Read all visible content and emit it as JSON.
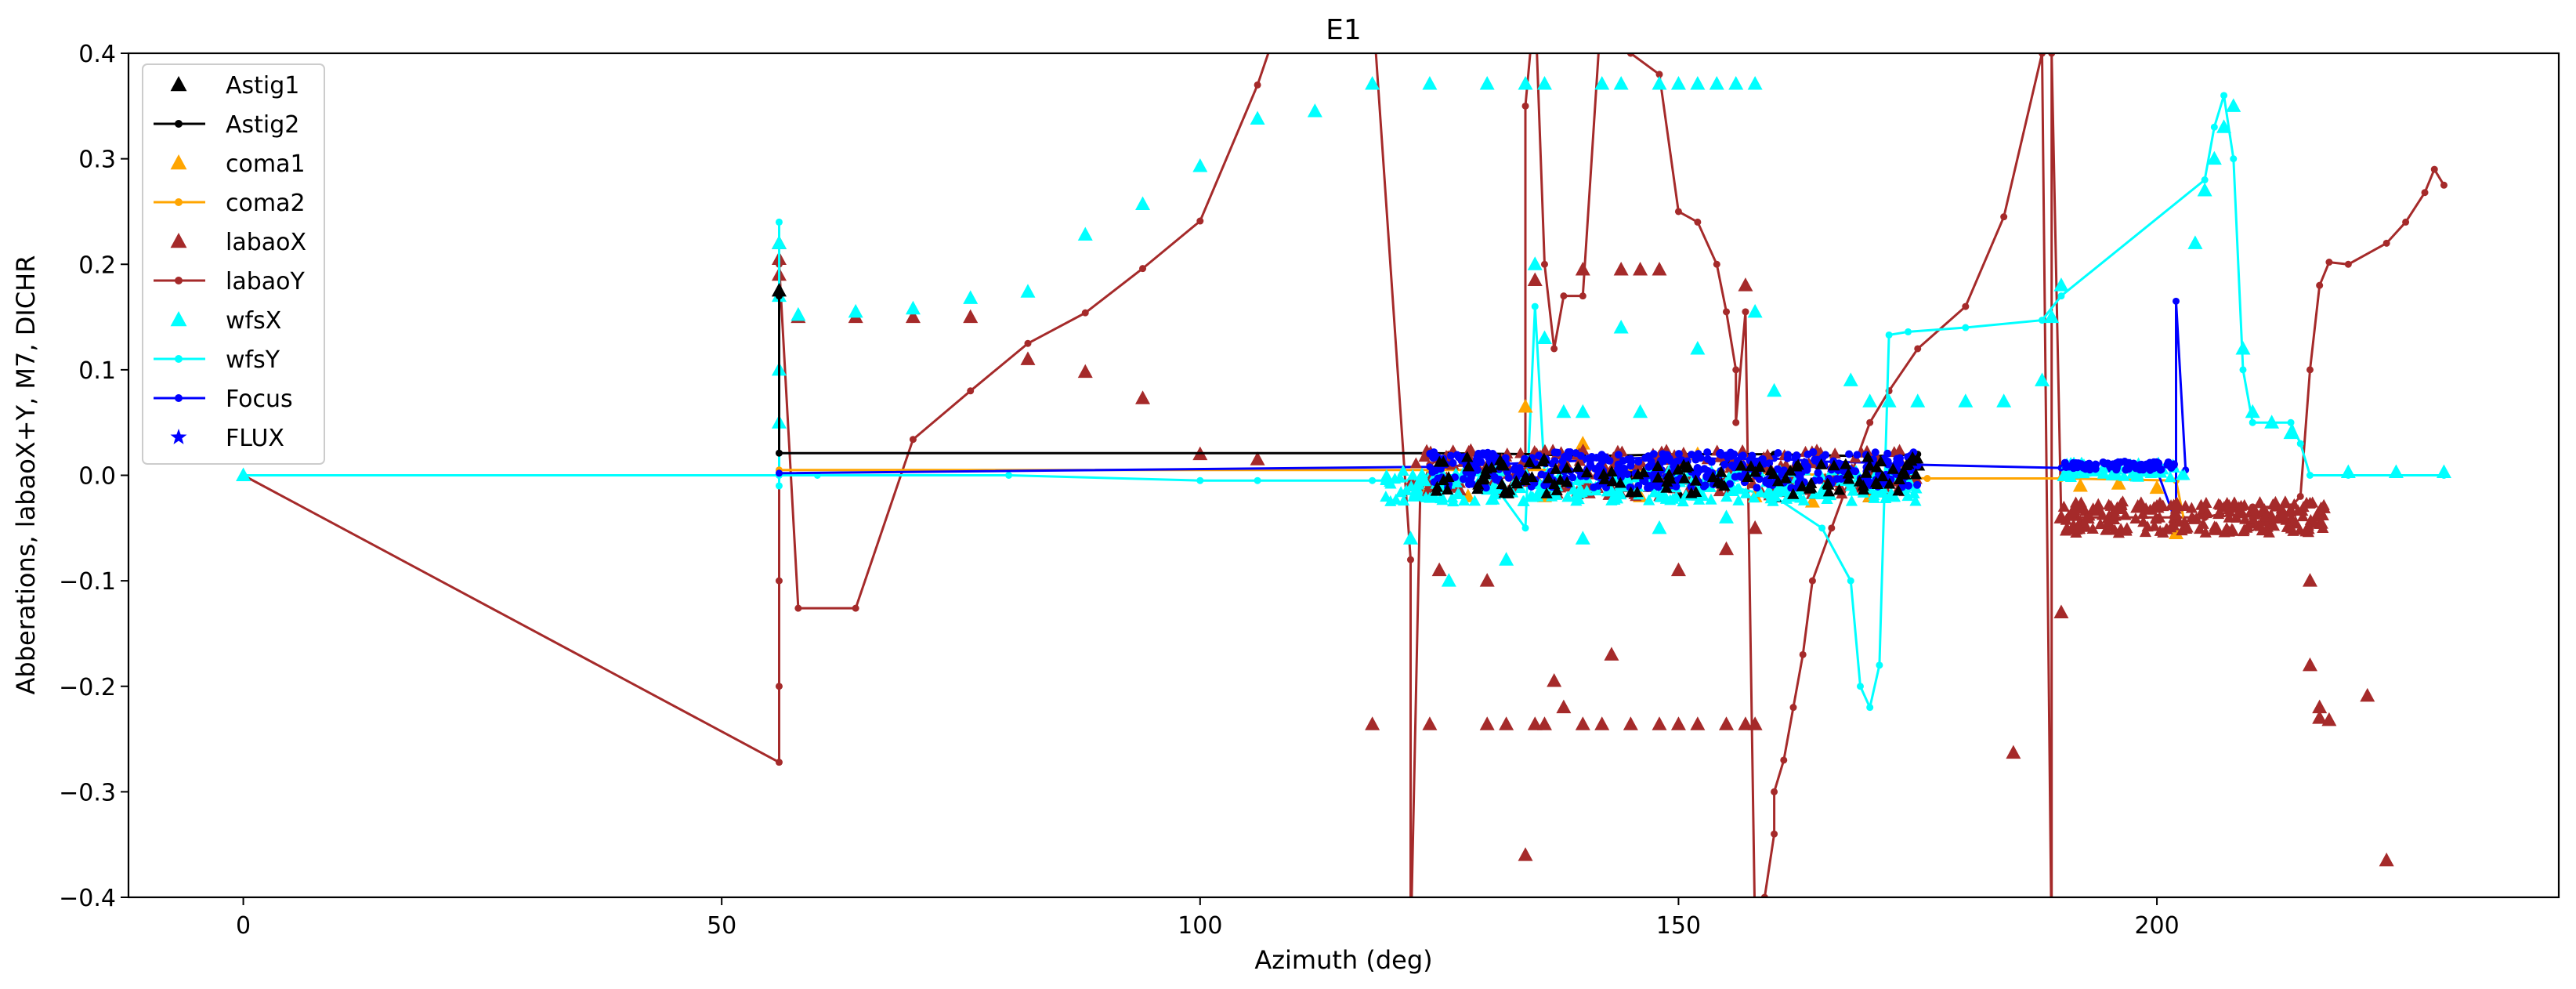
{
  "chart_data": {
    "type": "scatter",
    "title": "E1",
    "xlabel": "Azimuth (deg)",
    "ylabel": "Abberations, labaoX+Y, M7, DICHR",
    "xlim": [
      -12,
      242
    ],
    "ylim": [
      -0.4,
      0.4
    ],
    "xticks": [
      0,
      50,
      100,
      150,
      200
    ],
    "yticks": [
      -0.4,
      -0.3,
      -0.2,
      -0.1,
      0.0,
      0.1,
      0.2,
      0.3,
      0.4
    ],
    "xtick_labels": [
      "0",
      "50",
      "100",
      "150",
      "200"
    ],
    "ytick_labels": [
      "−0.4",
      "−0.3",
      "−0.2",
      "−0.1",
      "0.0",
      "0.1",
      "0.2",
      "0.3",
      "0.4"
    ],
    "grid": false,
    "legend_position": "upper-left",
    "legend": [
      {
        "name": "Astig1",
        "color": "#000000",
        "marker": "triangle",
        "line": false
      },
      {
        "name": "Astig2",
        "color": "#000000",
        "marker": "dot",
        "line": true
      },
      {
        "name": "coma1",
        "color": "#ffa500",
        "marker": "triangle",
        "line": false
      },
      {
        "name": "coma2",
        "color": "#ffa500",
        "marker": "dot",
        "line": true
      },
      {
        "name": "labaoX",
        "color": "#a52a2a",
        "marker": "triangle",
        "line": false
      },
      {
        "name": "labaoY",
        "color": "#a52a2a",
        "marker": "dot",
        "line": true
      },
      {
        "name": "wfsX",
        "color": "#00ffff",
        "marker": "triangle",
        "line": false
      },
      {
        "name": "wfsY",
        "color": "#00ffff",
        "marker": "dot",
        "line": true
      },
      {
        "name": "Focus",
        "color": "#0000ff",
        "marker": "dot",
        "line": true
      },
      {
        "name": "FLUX",
        "color": "#0000ff",
        "marker": "star",
        "line": false
      }
    ],
    "series": [
      {
        "name": "labaoY",
        "color": "#a52a2a",
        "mode": "line+dot",
        "x": [
          0,
          56,
          56,
          56,
          56,
          56,
          58,
          64,
          70,
          76,
          82,
          88,
          94,
          100,
          106,
          109,
          112,
          118,
          122,
          122,
          123,
          124,
          126,
          130,
          134,
          134,
          135,
          136,
          137,
          138,
          140,
          142,
          145,
          148,
          150,
          152,
          154,
          155,
          156,
          156,
          157,
          158,
          159,
          160,
          160,
          161,
          162,
          163,
          164,
          166,
          168,
          170,
          172,
          175,
          180,
          184,
          188,
          189,
          189,
          190,
          190,
          195,
          200,
          205,
          210,
          214,
          215,
          216,
          217,
          218,
          220,
          224,
          226,
          228,
          229,
          230
        ],
        "y": [
          0.0,
          -0.272,
          -0.2,
          -0.1,
          0.1,
          0.2,
          -0.126,
          -0.126,
          0.034,
          0.08,
          0.125,
          0.154,
          0.196,
          0.241,
          0.37,
          0.45,
          0.45,
          0.45,
          -0.08,
          -0.45,
          -0.02,
          0.01,
          0.02,
          0.01,
          0.0,
          0.35,
          0.45,
          0.2,
          0.12,
          0.17,
          0.17,
          0.45,
          0.4,
          0.38,
          0.25,
          0.24,
          0.2,
          0.155,
          0.1,
          0.05,
          0.155,
          -0.43,
          -0.4,
          -0.34,
          -0.3,
          -0.27,
          -0.22,
          -0.17,
          -0.1,
          -0.05,
          0.0,
          0.05,
          0.08,
          0.12,
          0.16,
          0.245,
          0.4,
          -0.45,
          0.4,
          -0.04,
          -0.04,
          -0.04,
          -0.04,
          -0.04,
          -0.03,
          -0.03,
          -0.02,
          0.1,
          0.18,
          0.202,
          0.2,
          0.22,
          0.24,
          0.268,
          0.29,
          0.275
        ]
      },
      {
        "name": "labaoX",
        "color": "#a52a2a",
        "mode": "triangle",
        "x": [
          56,
          56,
          56,
          58,
          64,
          70,
          76,
          82,
          88,
          94,
          100,
          106,
          118,
          124,
          130,
          132,
          134,
          135,
          136,
          137,
          138,
          140,
          142,
          143,
          145,
          148,
          150,
          152,
          155,
          157,
          158,
          190,
          192,
          195,
          198,
          200,
          202,
          205,
          208,
          212,
          216,
          216,
          217,
          217,
          218,
          222,
          224,
          185,
          190,
          135,
          140,
          144,
          148,
          157,
          146,
          150,
          155,
          158,
          130,
          125
        ],
        "y": [
          0.22,
          0.205,
          0.19,
          0.15,
          0.15,
          0.15,
          0.15,
          0.11,
          0.098,
          0.073,
          0.02,
          0.015,
          -0.236,
          -0.236,
          -0.236,
          -0.236,
          -0.36,
          -0.236,
          -0.236,
          -0.195,
          -0.22,
          -0.236,
          -0.236,
          -0.17,
          -0.236,
          -0.236,
          -0.236,
          -0.236,
          -0.236,
          -0.236,
          -0.236,
          -0.04,
          -0.045,
          -0.04,
          -0.03,
          -0.03,
          -0.04,
          -0.035,
          -0.03,
          -0.04,
          -0.1,
          -0.18,
          -0.22,
          -0.23,
          -0.232,
          -0.209,
          -0.365,
          -0.263,
          -0.13,
          0.185,
          0.195,
          0.195,
          0.195,
          0.18,
          0.195,
          -0.09,
          -0.07,
          -0.05,
          -0.1,
          -0.09
        ]
      },
      {
        "name": "wfsY",
        "color": "#00ffff",
        "mode": "line+dot",
        "x": [
          0,
          56,
          56,
          56,
          56,
          60,
          80,
          100,
          106,
          118,
          122,
          124,
          130,
          134,
          135,
          136,
          140,
          150,
          160,
          165,
          168,
          169,
          170,
          171,
          172,
          174,
          180,
          188,
          190,
          205,
          206,
          207,
          208,
          209,
          210,
          212,
          214,
          215,
          216,
          220,
          230
        ],
        "y": [
          0.0,
          0.0,
          0.24,
          -0.01,
          0.0,
          0.0,
          0.0,
          -0.005,
          -0.005,
          -0.005,
          -0.005,
          0.0,
          0.0,
          -0.05,
          0.16,
          0.0,
          -0.01,
          0.0,
          -0.02,
          -0.05,
          -0.1,
          -0.2,
          -0.22,
          -0.18,
          0.133,
          0.136,
          0.14,
          0.147,
          0.17,
          0.28,
          0.33,
          0.36,
          0.3,
          0.1,
          0.05,
          0.05,
          0.05,
          0.03,
          0.0,
          0.0,
          0.0
        ]
      },
      {
        "name": "wfsX",
        "color": "#00ffff",
        "mode": "triangle",
        "x": [
          0,
          56,
          56,
          56,
          56,
          58,
          64,
          70,
          76,
          82,
          88,
          94,
          100,
          106,
          112,
          118,
          124,
          130,
          134,
          135,
          136,
          138,
          140,
          142,
          144,
          146,
          148,
          150,
          152,
          154,
          156,
          158,
          168,
          170,
          172,
          175,
          180,
          184,
          188,
          189,
          190,
          204,
          205,
          206,
          207,
          208,
          209,
          210,
          212,
          214,
          220,
          225,
          230,
          122,
          126,
          132,
          140,
          148,
          155,
          158,
          136,
          144,
          152,
          160
        ],
        "y": [
          0.0,
          0.22,
          0.17,
          0.1,
          0.05,
          0.152,
          0.155,
          0.158,
          0.168,
          0.174,
          0.228,
          0.257,
          0.293,
          0.338,
          0.345,
          0.371,
          0.371,
          0.371,
          0.371,
          0.2,
          0.371,
          0.06,
          0.06,
          0.371,
          0.371,
          0.06,
          0.371,
          0.371,
          0.371,
          0.371,
          0.371,
          0.371,
          0.09,
          0.07,
          0.07,
          0.07,
          0.07,
          0.07,
          0.09,
          0.15,
          0.18,
          0.22,
          0.27,
          0.3,
          0.33,
          0.35,
          0.12,
          0.06,
          0.05,
          0.04,
          0.003,
          0.003,
          0.003,
          -0.06,
          -0.1,
          -0.08,
          -0.06,
          -0.05,
          -0.04,
          0.155,
          0.13,
          0.14,
          0.12,
          0.08
        ]
      },
      {
        "name": "Astig2",
        "color": "#000000",
        "mode": "line+dot",
        "x": [
          56,
          56,
          124,
          135,
          140,
          150,
          160,
          170,
          175
        ],
        "y": [
          0.17,
          0.021,
          0.021,
          0.02,
          0.018,
          0.02,
          0.02,
          0.018,
          0.02
        ]
      },
      {
        "name": "Astig1",
        "color": "#000000",
        "mode": "triangle",
        "x": [
          56,
          124,
          130,
          135,
          140,
          145,
          150,
          155,
          160,
          165,
          170,
          175
        ],
        "y": [
          0.175,
          -0.015,
          -0.01,
          0.01,
          -0.015,
          0.0,
          -0.018,
          0.015,
          -0.02,
          0.012,
          -0.02,
          0.01
        ]
      },
      {
        "name": "coma2",
        "color": "#ffa500",
        "mode": "line+dot",
        "x": [
          56,
          124,
          150,
          176,
          190,
          202,
          203
        ],
        "y": [
          0.005,
          0.005,
          0.005,
          -0.003,
          -0.003,
          -0.005,
          -0.05
        ]
      },
      {
        "name": "coma1",
        "color": "#ffa500",
        "mode": "triangle",
        "x": [
          124,
          128,
          134,
          136,
          140,
          146,
          152,
          158,
          164,
          170,
          192,
          196,
          200,
          202
        ],
        "y": [
          -0.01,
          -0.02,
          0.065,
          -0.02,
          0.03,
          -0.02,
          0.02,
          -0.02,
          -0.025,
          -0.02,
          -0.01,
          -0.008,
          -0.012,
          -0.055
        ]
      },
      {
        "name": "Focus",
        "color": "#0000ff",
        "mode": "line+dot",
        "x": [
          56,
          124,
          130,
          135,
          140,
          145,
          150,
          155,
          160,
          165,
          170,
          175,
          190,
          195,
          200,
          202,
          202,
          203
        ],
        "y": [
          0.002,
          0.008,
          0.01,
          0.012,
          0.014,
          0.016,
          0.018,
          0.015,
          0.016,
          0.013,
          0.012,
          0.01,
          0.007,
          0.006,
          0.005,
          -0.045,
          0.165,
          0.005
        ]
      }
    ],
    "dense_bands": [
      {
        "name": "labaoX",
        "color": "#a52a2a",
        "x_range": [
          122,
          175
        ],
        "y_range": [
          -0.02,
          0.025
        ],
        "count": 260
      },
      {
        "name": "labaoX",
        "color": "#a52a2a",
        "x_range": [
          190,
          218
        ],
        "y_range": [
          -0.055,
          -0.025
        ],
        "count": 220
      },
      {
        "name": "wfsX",
        "color": "#00ffff",
        "x_range": [
          119,
          175
        ],
        "y_range": [
          -0.025,
          0.005
        ],
        "count": 300
      },
      {
        "name": "wfsX",
        "color": "#00ffff",
        "x_range": [
          190,
          203
        ],
        "y_range": [
          -0.002,
          0.012
        ],
        "count": 60
      },
      {
        "name": "Focus",
        "color": "#0000ff",
        "x_range": [
          124,
          175
        ],
        "y_range": [
          -0.012,
          0.022
        ],
        "count": 420
      },
      {
        "name": "Focus",
        "color": "#0000ff",
        "x_range": [
          190,
          202
        ],
        "y_range": [
          0.005,
          0.013
        ],
        "count": 80
      },
      {
        "name": "Astig1",
        "color": "#000000",
        "x_range": [
          124,
          175
        ],
        "y_range": [
          -0.018,
          0.018
        ],
        "count": 120
      }
    ]
  }
}
